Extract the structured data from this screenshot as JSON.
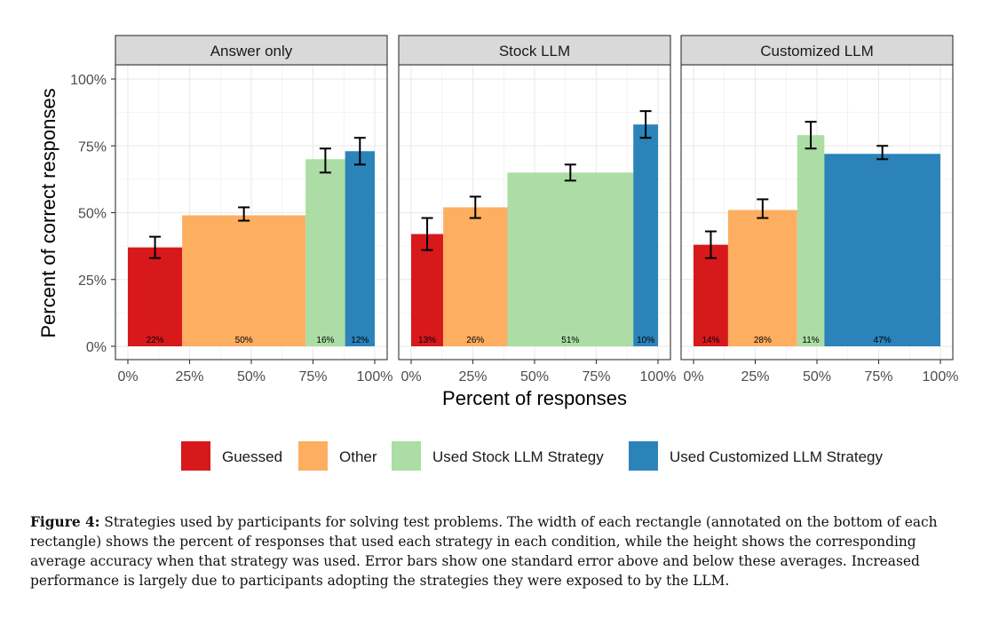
{
  "chart_data": {
    "type": "bar",
    "subtype": "marimekko-faceted",
    "ylabel": "Percent of correct responses",
    "xlabel": "Percent of responses",
    "ylim": [
      0,
      100
    ],
    "xlim": [
      0,
      100
    ],
    "y_ticks": [
      "0%",
      "25%",
      "50%",
      "75%",
      "100%"
    ],
    "x_ticks": [
      "0%",
      "25%",
      "50%",
      "75%",
      "100%"
    ],
    "grid": true,
    "legend_position": "bottom",
    "legend": [
      {
        "name": "Guessed",
        "color": "#d7191c"
      },
      {
        "name": "Other",
        "color": "#fdae61"
      },
      {
        "name": "Used Stock LLM Strategy",
        "color": "#abdda4"
      },
      {
        "name": "Used Customized LLM Strategy",
        "color": "#2b83ba"
      }
    ],
    "panels": [
      {
        "title": "Answer only",
        "bars": [
          {
            "strategy": "Guessed",
            "width": 22,
            "width_label": "22%",
            "accuracy": 37,
            "se_low": 33,
            "se_high": 41
          },
          {
            "strategy": "Other",
            "width": 50,
            "width_label": "50%",
            "accuracy": 49,
            "se_low": 47,
            "se_high": 52
          },
          {
            "strategy": "Used Stock LLM Strategy",
            "width": 16,
            "width_label": "16%",
            "accuracy": 70,
            "se_low": 65,
            "se_high": 74
          },
          {
            "strategy": "Used Customized LLM Strategy",
            "width": 12,
            "width_label": "12%",
            "accuracy": 73,
            "se_low": 68,
            "se_high": 78
          }
        ]
      },
      {
        "title": "Stock LLM",
        "bars": [
          {
            "strategy": "Guessed",
            "width": 13,
            "width_label": "13%",
            "accuracy": 42,
            "se_low": 36,
            "se_high": 48
          },
          {
            "strategy": "Other",
            "width": 26,
            "width_label": "26%",
            "accuracy": 52,
            "se_low": 48,
            "se_high": 56
          },
          {
            "strategy": "Used Stock LLM Strategy",
            "width": 51,
            "width_label": "51%",
            "accuracy": 65,
            "se_low": 62,
            "se_high": 68
          },
          {
            "strategy": "Used Customized LLM Strategy",
            "width": 10,
            "width_label": "10%",
            "accuracy": 83,
            "se_low": 78,
            "se_high": 88
          }
        ]
      },
      {
        "title": "Customized LLM",
        "bars": [
          {
            "strategy": "Guessed",
            "width": 14,
            "width_label": "14%",
            "accuracy": 38,
            "se_low": 33,
            "se_high": 43
          },
          {
            "strategy": "Other",
            "width": 28,
            "width_label": "28%",
            "accuracy": 51,
            "se_low": 48,
            "se_high": 55
          },
          {
            "strategy": "Used Stock LLM Strategy",
            "width": 11,
            "width_label": "11%",
            "accuracy": 79,
            "se_low": 74,
            "se_high": 84
          },
          {
            "strategy": "Used Customized LLM Strategy",
            "width": 47,
            "width_label": "47%",
            "accuracy": 72,
            "se_low": 70,
            "se_high": 75
          }
        ]
      }
    ]
  },
  "caption": {
    "label": "Figure 4:",
    "text": "Strategies used by participants for solving test problems. The width of each rectangle (annotated on the bottom of each rectangle) shows the percent of responses that used each strategy in each condition, while the height shows the corresponding average accuracy when that strategy was used. Error bars show one standard error above and below these averages. Increased performance is largely due to participants adopting the strategies they were exposed to by the LLM."
  }
}
